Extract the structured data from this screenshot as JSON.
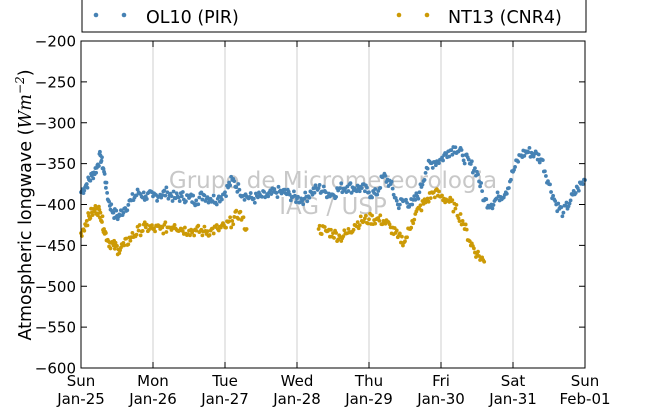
{
  "chart_data": {
    "type": "scatter",
    "title": "",
    "xlabel": "",
    "ylabel": "Atmospheric longwave (Wm⁻²)",
    "ylabel_main": "Atmospheric longwave (",
    "ylabel_unit": "Wm",
    "ylabel_exp": "−2",
    "ylabel_close": ")",
    "ylim": [
      -600,
      -200
    ],
    "yticks": [
      -600,
      -550,
      -500,
      -450,
      -400,
      -350,
      -300,
      -250,
      -200
    ],
    "ytick_labels": [
      "−600",
      "−550",
      "−500",
      "−450",
      "−400",
      "−350",
      "−300",
      "−250",
      "−200"
    ],
    "xlim": [
      "2015-01-25",
      "2015-02-01"
    ],
    "xticks": [
      {
        "day": "Sun",
        "date": "Jan-25"
      },
      {
        "day": "Mon",
        "date": "Jan-26"
      },
      {
        "day": "Tue",
        "date": "Jan-27"
      },
      {
        "day": "Wed",
        "date": "Jan-28"
      },
      {
        "day": "Thu",
        "date": "Jan-29"
      },
      {
        "day": "Fri",
        "date": "Jan-30"
      },
      {
        "day": "Sat",
        "date": "Jan-31"
      },
      {
        "day": "Sun",
        "date": "Feb-01"
      }
    ],
    "grid": "vertical",
    "legend_position": "top",
    "watermark": [
      "Grupo de Micrometeorologia",
      "IAG / USP"
    ],
    "series": [
      {
        "name": "OL10 (PIR)",
        "color": "#4682b4",
        "x": [
          0.0,
          0.08,
          0.15,
          0.22,
          0.27,
          0.32,
          0.38,
          0.45,
          0.52,
          0.6,
          0.7,
          0.8,
          0.9,
          1.0,
          1.1,
          1.2,
          1.3,
          1.4,
          1.5,
          1.6,
          1.7,
          1.8,
          1.9,
          2.0,
          2.1,
          2.2,
          2.3,
          2.4,
          2.5,
          2.6,
          2.7,
          2.8,
          2.9,
          3.0,
          3.1,
          3.2,
          3.3,
          3.4,
          3.5,
          3.6,
          3.7,
          3.8,
          3.9,
          4.0,
          4.1,
          4.2,
          4.3,
          4.4,
          4.5,
          4.6,
          4.7,
          4.8,
          4.9,
          5.0,
          5.1,
          5.2,
          5.3,
          5.4,
          5.5,
          5.6,
          5.7,
          5.8,
          5.9,
          6.0,
          6.1,
          6.2,
          6.3,
          6.4,
          6.5,
          6.6,
          6.7,
          6.8,
          6.9,
          7.0
        ],
        "y": [
          -385,
          -375,
          -365,
          -355,
          -340,
          -360,
          -395,
          -410,
          -415,
          -405,
          -395,
          -385,
          -390,
          -390,
          -388,
          -385,
          -392,
          -390,
          -392,
          -395,
          -388,
          -393,
          -393,
          -385,
          -370,
          -382,
          -390,
          -393,
          -390,
          -390,
          -385,
          -385,
          -388,
          -393,
          -393,
          -385,
          -380,
          -385,
          -388,
          -380,
          -378,
          -380,
          -380,
          -385,
          -388,
          -365,
          -375,
          -400,
          -395,
          -400,
          -385,
          -355,
          -348,
          -345,
          -335,
          -330,
          -340,
          -350,
          -360,
          -395,
          -400,
          -390,
          -385,
          -360,
          -340,
          -335,
          -338,
          -345,
          -375,
          -400,
          -410,
          -395,
          -380,
          -370
        ]
      },
      {
        "name": "NT13 (CNR4)",
        "color": "#cc9a06",
        "x": [
          0.0,
          0.08,
          0.15,
          0.22,
          0.27,
          0.32,
          0.38,
          0.45,
          0.52,
          0.6,
          0.7,
          0.8,
          0.9,
          1.0,
          1.1,
          1.2,
          1.3,
          1.4,
          1.5,
          1.6,
          1.7,
          1.8,
          1.9,
          2.0,
          2.1,
          2.2,
          2.3,
          3.3,
          3.4,
          3.5,
          3.6,
          3.7,
          3.8,
          3.9,
          4.0,
          4.1,
          4.2,
          4.3,
          4.4,
          4.5,
          4.6,
          4.7,
          4.8,
          4.9,
          5.0,
          5.1,
          5.2,
          5.3,
          5.4,
          5.5,
          5.6
        ],
        "y": [
          -435,
          -420,
          -410,
          -405,
          -410,
          -430,
          -445,
          -450,
          -455,
          -450,
          -440,
          -432,
          -428,
          -430,
          -430,
          -428,
          -425,
          -430,
          -432,
          -432,
          -433,
          -432,
          -430,
          -428,
          -420,
          -410,
          -430,
          -430,
          -432,
          -435,
          -440,
          -435,
          -425,
          -420,
          -418,
          -418,
          -420,
          -428,
          -440,
          -445,
          -420,
          -405,
          -395,
          -385,
          -390,
          -395,
          -405,
          -420,
          -445,
          -460,
          -470
        ]
      }
    ]
  }
}
